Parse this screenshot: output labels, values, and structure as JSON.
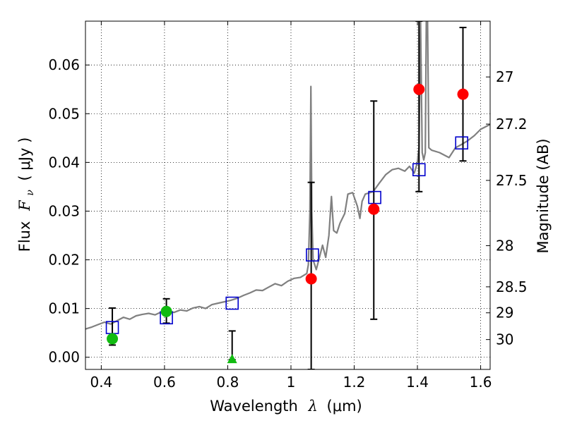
{
  "chart_data": {
    "type": "scatter",
    "xlabel_text": "Wavelength",
    "xlabel_symbol": "λ",
    "xlabel_unit": "(μm)",
    "ylabel_text": "Flux",
    "ylabel_symbol": "F",
    "ylabel_subscript": "ν",
    "ylabel_unit": "( μJy )",
    "y2label": "Magnitude (AB)",
    "xlim": [
      0.35,
      1.63
    ],
    "ylim": [
      -0.0025,
      0.069
    ],
    "grid": true,
    "x_ticks": [
      {
        "value": 0.4,
        "label": "0.4"
      },
      {
        "value": 0.6,
        "label": "0.6"
      },
      {
        "value": 0.8,
        "label": "0.8"
      },
      {
        "value": 1.0,
        "label": "1"
      },
      {
        "value": 1.2,
        "label": "1.2"
      },
      {
        "value": 1.4,
        "label": "1.4"
      },
      {
        "value": 1.6,
        "label": "1.6"
      }
    ],
    "y_ticks": [
      {
        "value": 0.0,
        "label": "0.00"
      },
      {
        "value": 0.01,
        "label": "0.01"
      },
      {
        "value": 0.02,
        "label": "0.02"
      },
      {
        "value": 0.03,
        "label": "0.03"
      },
      {
        "value": 0.04,
        "label": "0.04"
      },
      {
        "value": 0.05,
        "label": "0.05"
      },
      {
        "value": 0.06,
        "label": "0.06"
      }
    ],
    "magnitude_ticks": [
      {
        "value": 27.0,
        "label": "27"
      },
      {
        "value": 27.2,
        "label": "27.2"
      },
      {
        "value": 27.5,
        "label": "27.5"
      },
      {
        "value": 28.0,
        "label": "28"
      },
      {
        "value": 28.5,
        "label": "28.5"
      },
      {
        "value": 29.0,
        "label": "29"
      },
      {
        "value": 30.0,
        "label": "30"
      }
    ],
    "colors": {
      "model": "#808080",
      "green": "#11bb11",
      "red": "#ff0000",
      "box": "#0000cc",
      "errorbar": "#000000"
    },
    "model_spectrum": [
      [
        0.35,
        0.0058
      ],
      [
        0.37,
        0.0062
      ],
      [
        0.39,
        0.0067
      ],
      [
        0.41,
        0.0072
      ],
      [
        0.43,
        0.0068
      ],
      [
        0.45,
        0.0075
      ],
      [
        0.47,
        0.0082
      ],
      [
        0.49,
        0.0078
      ],
      [
        0.51,
        0.0085
      ],
      [
        0.53,
        0.0088
      ],
      [
        0.55,
        0.009
      ],
      [
        0.57,
        0.0087
      ],
      [
        0.59,
        0.0093
      ],
      [
        0.61,
        0.0096
      ],
      [
        0.63,
        0.0092
      ],
      [
        0.65,
        0.0097
      ],
      [
        0.67,
        0.0095
      ],
      [
        0.69,
        0.0101
      ],
      [
        0.71,
        0.0104
      ],
      [
        0.73,
        0.01
      ],
      [
        0.75,
        0.0108
      ],
      [
        0.77,
        0.0111
      ],
      [
        0.79,
        0.0114
      ],
      [
        0.81,
        0.0117
      ],
      [
        0.83,
        0.0121
      ],
      [
        0.85,
        0.0127
      ],
      [
        0.87,
        0.0132
      ],
      [
        0.89,
        0.0138
      ],
      [
        0.91,
        0.0137
      ],
      [
        0.93,
        0.0144
      ],
      [
        0.95,
        0.0151
      ],
      [
        0.97,
        0.0147
      ],
      [
        0.99,
        0.0156
      ],
      [
        1.01,
        0.0162
      ],
      [
        1.03,
        0.0164
      ],
      [
        1.05,
        0.0172
      ],
      [
        1.055,
        0.019
      ],
      [
        1.06,
        0.03
      ],
      [
        1.063,
        0.0556
      ],
      [
        1.066,
        0.03
      ],
      [
        1.07,
        0.02
      ],
      [
        1.08,
        0.018
      ],
      [
        1.09,
        0.0205
      ],
      [
        1.1,
        0.023
      ],
      [
        1.11,
        0.0205
      ],
      [
        1.12,
        0.025
      ],
      [
        1.128,
        0.033
      ],
      [
        1.135,
        0.026
      ],
      [
        1.145,
        0.0255
      ],
      [
        1.155,
        0.0275
      ],
      [
        1.17,
        0.0295
      ],
      [
        1.18,
        0.0335
      ],
      [
        1.195,
        0.0338
      ],
      [
        1.21,
        0.031
      ],
      [
        1.218,
        0.0285
      ],
      [
        1.225,
        0.032
      ],
      [
        1.235,
        0.0335
      ],
      [
        1.26,
        0.034
      ],
      [
        1.28,
        0.0358
      ],
      [
        1.3,
        0.0375
      ],
      [
        1.32,
        0.0385
      ],
      [
        1.34,
        0.0388
      ],
      [
        1.36,
        0.0382
      ],
      [
        1.375,
        0.0392
      ],
      [
        1.39,
        0.0378
      ],
      [
        1.4,
        0.04
      ],
      [
        1.405,
        0.043
      ],
      [
        1.41,
        0.069
      ],
      [
        1.415,
        0.042
      ],
      [
        1.42,
        0.0405
      ],
      [
        1.425,
        0.042
      ],
      [
        1.428,
        0.069
      ],
      [
        1.432,
        0.069
      ],
      [
        1.436,
        0.043
      ],
      [
        1.445,
        0.0425
      ],
      [
        1.47,
        0.042
      ],
      [
        1.5,
        0.041
      ],
      [
        1.52,
        0.043
      ],
      [
        1.54,
        0.0437
      ],
      [
        1.56,
        0.0445
      ],
      [
        1.58,
        0.0455
      ],
      [
        1.6,
        0.0468
      ],
      [
        1.63,
        0.0478
      ]
    ],
    "model_fluxes": [
      {
        "x": 0.435,
        "y": 0.0061
      },
      {
        "x": 0.606,
        "y": 0.0081
      },
      {
        "x": 0.814,
        "y": 0.0111
      },
      {
        "x": 1.068,
        "y": 0.021
      },
      {
        "x": 1.265,
        "y": 0.0328
      },
      {
        "x": 1.405,
        "y": 0.0385
      },
      {
        "x": 1.54,
        "y": 0.044
      }
    ],
    "detections_optical": [
      {
        "x": 0.435,
        "y": 0.0038,
        "yerr_low": 0.0025,
        "yerr_high": 0.0101
      },
      {
        "x": 0.606,
        "y": 0.0094,
        "yerr_low": 0.007,
        "yerr_high": 0.012
      }
    ],
    "upper_limit_optical": [
      {
        "x": 0.814,
        "y": -0.0005,
        "yerr_high": 0.0054
      }
    ],
    "detections_nir": [
      {
        "x": 1.064,
        "y": 0.0161,
        "yerr_low": -0.0025,
        "yerr_high": 0.0359
      },
      {
        "x": 1.262,
        "y": 0.0304,
        "yerr_low": 0.0078,
        "yerr_high": 0.0526
      },
      {
        "x": 1.405,
        "y": 0.055,
        "yerr_low": 0.034,
        "yerr_high": 0.069
      },
      {
        "x": 1.544,
        "y": 0.054,
        "yerr_low": 0.0403,
        "yerr_high": 0.0677
      }
    ]
  }
}
